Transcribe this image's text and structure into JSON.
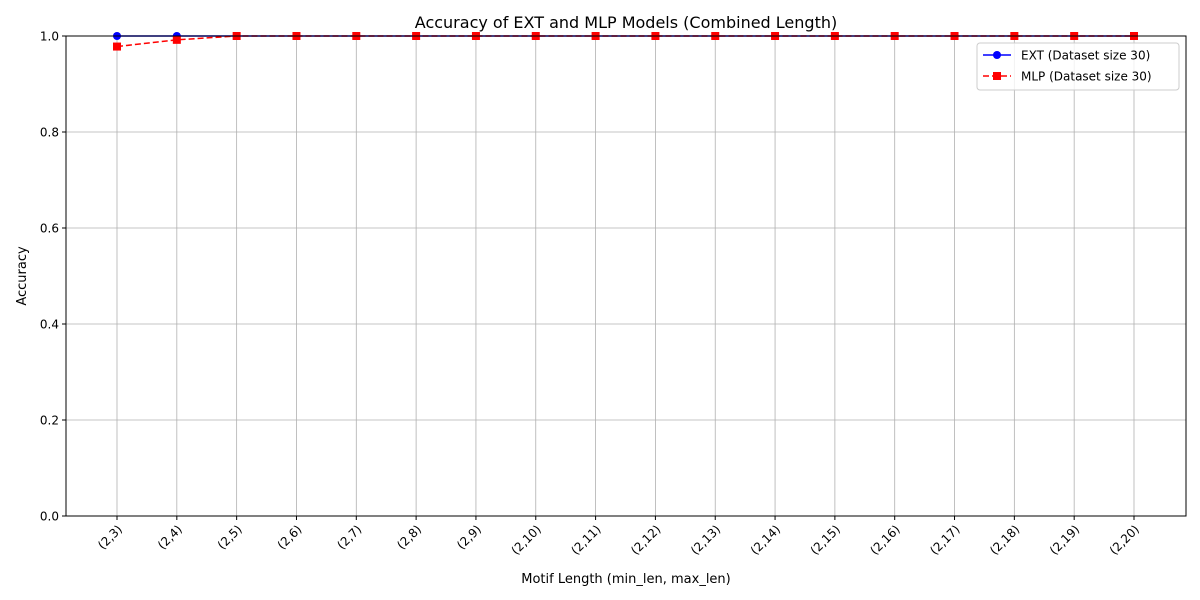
{
  "chart_data": {
    "type": "line",
    "title": "Accuracy of EXT and MLP Models (Combined Length)",
    "xlabel": "Motif Length (min_len, max_len)",
    "ylabel": "Accuracy",
    "categories": [
      "(2,3)",
      "(2,4)",
      "(2,5)",
      "(2,6)",
      "(2,7)",
      "(2,8)",
      "(2,9)",
      "(2,10)",
      "(2,11)",
      "(2,12)",
      "(2,13)",
      "(2,14)",
      "(2,15)",
      "(2,16)",
      "(2,17)",
      "(2,18)",
      "(2,19)",
      "(2,20)"
    ],
    "ylim": [
      0.0,
      1.0
    ],
    "yticks": [
      "0.0",
      "0.2",
      "0.4",
      "0.6",
      "0.8",
      "1.0"
    ],
    "grid": true,
    "legend_position": "top-right",
    "series": [
      {
        "name": "EXT (Dataset size 30)",
        "color": "#0000ff",
        "marker": "circle",
        "linestyle": "solid",
        "values": [
          1.0,
          1.0,
          1.0,
          1.0,
          1.0,
          1.0,
          1.0,
          1.0,
          1.0,
          1.0,
          1.0,
          1.0,
          1.0,
          1.0,
          1.0,
          1.0,
          1.0,
          1.0
        ]
      },
      {
        "name": "MLP (Dataset size 30)",
        "color": "#ff0000",
        "marker": "square",
        "linestyle": "dashed",
        "values": [
          0.978,
          0.992,
          1.0,
          1.0,
          1.0,
          1.0,
          1.0,
          1.0,
          1.0,
          1.0,
          1.0,
          1.0,
          1.0,
          1.0,
          1.0,
          1.0,
          1.0,
          1.0
        ]
      }
    ]
  }
}
